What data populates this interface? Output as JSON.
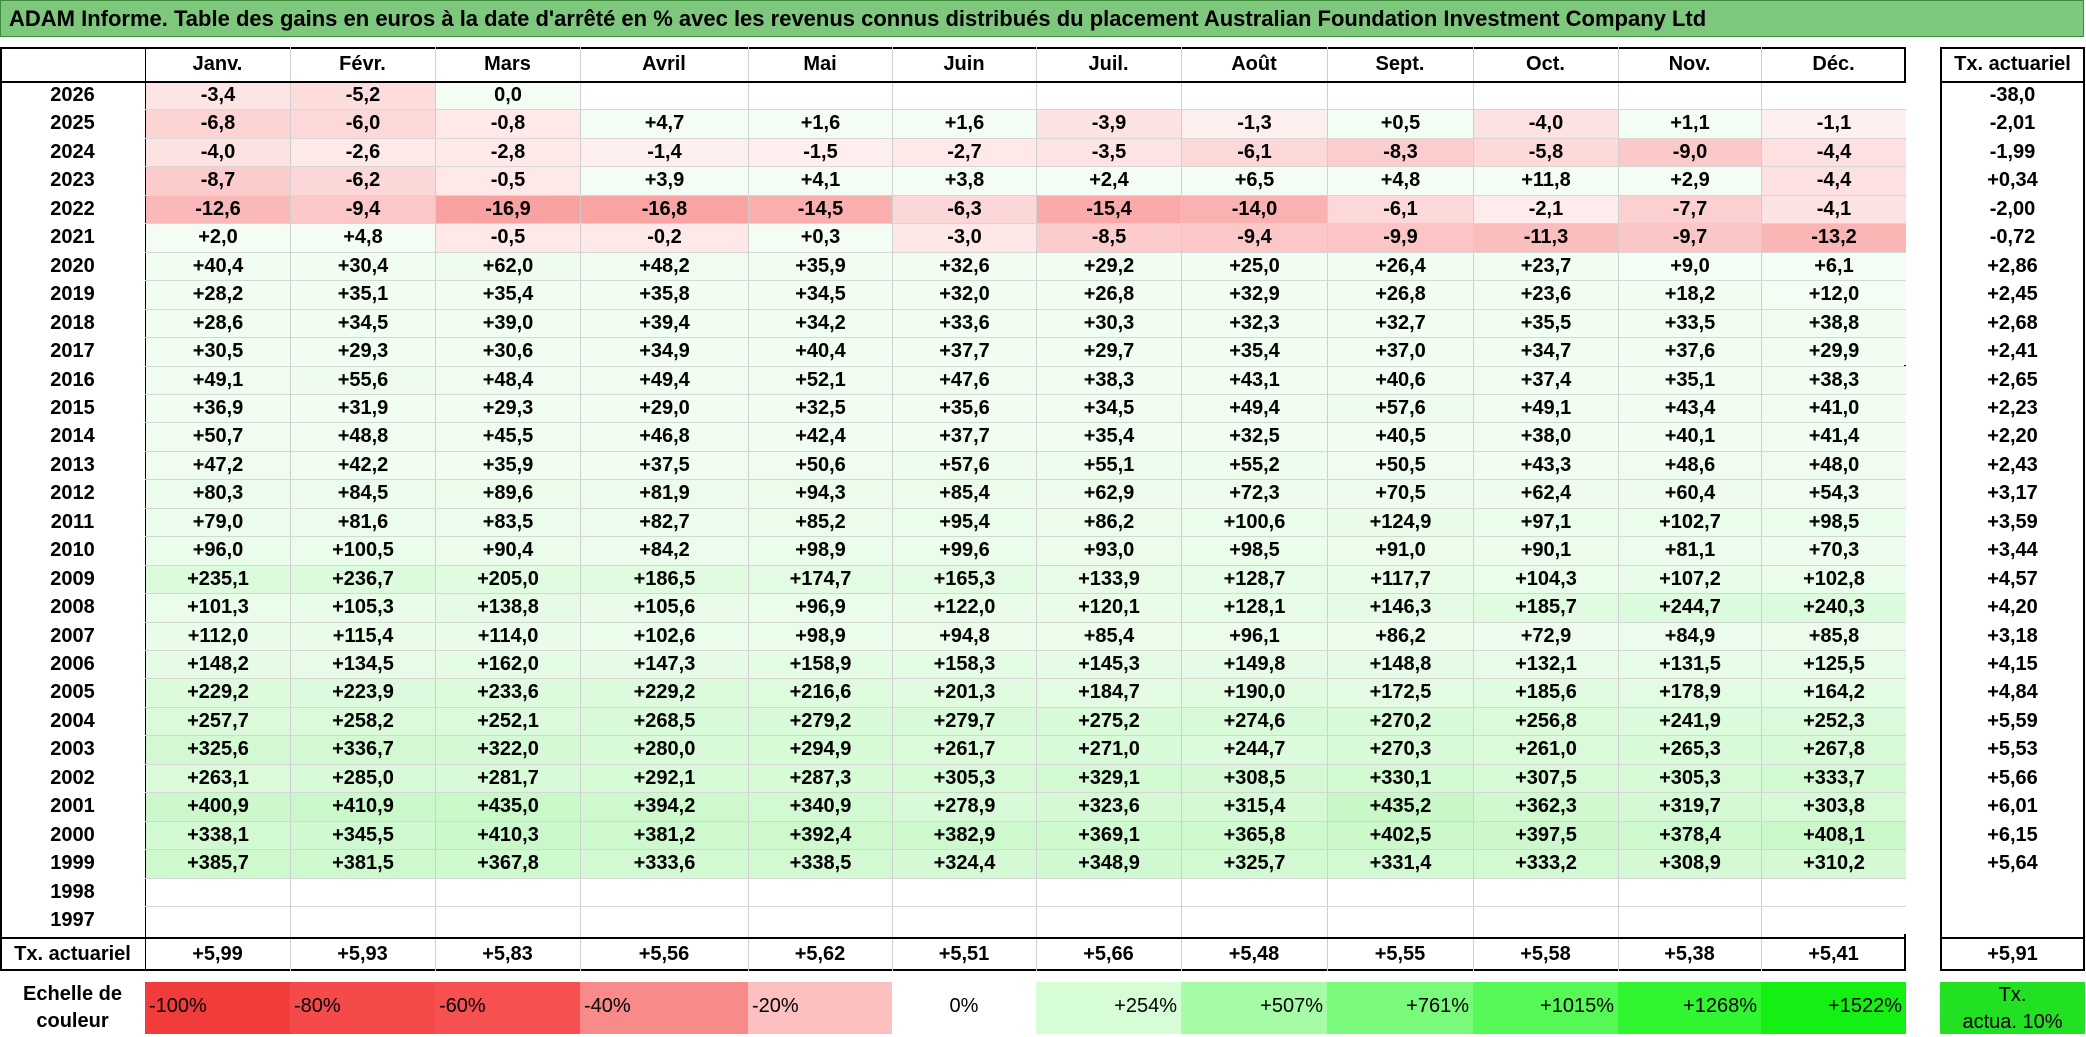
{
  "title": "ADAM Informe. Table des gains en euros à la date d'arrêté en % avec les revenus connus distribués du placement Australian Foundation Investment Company Ltd",
  "months": [
    "Janv.",
    "Févr.",
    "Mars",
    "Avril",
    "Mai",
    "Juin",
    "Juil.",
    "Août",
    "Sept.",
    "Oct.",
    "Nov.",
    "Déc."
  ],
  "rate_header": "Tx. actuariel",
  "rows": [
    {
      "year": "2026",
      "values": [
        "-3,4",
        "-5,2",
        "0,0",
        "",
        "",
        "",
        "",
        "",
        "",
        "",
        "",
        ""
      ],
      "rate": "-38,0"
    },
    {
      "year": "2025",
      "values": [
        "-6,8",
        "-6,0",
        "-0,8",
        "+4,7",
        "+1,6",
        "+1,6",
        "-3,9",
        "-1,3",
        "+0,5",
        "-4,0",
        "+1,1",
        "-1,1"
      ],
      "rate": "-2,01"
    },
    {
      "year": "2024",
      "values": [
        "-4,0",
        "-2,6",
        "-2,8",
        "-1,4",
        "-1,5",
        "-2,7",
        "-3,5",
        "-6,1",
        "-8,3",
        "-5,8",
        "-9,0",
        "-4,4"
      ],
      "rate": "-1,99"
    },
    {
      "year": "2023",
      "values": [
        "-8,7",
        "-6,2",
        "-0,5",
        "+3,9",
        "+4,1",
        "+3,8",
        "+2,4",
        "+6,5",
        "+4,8",
        "+11,8",
        "+2,9",
        "-4,4"
      ],
      "rate": "+0,34"
    },
    {
      "year": "2022",
      "values": [
        "-12,6",
        "-9,4",
        "-16,9",
        "-16,8",
        "-14,5",
        "-6,3",
        "-15,4",
        "-14,0",
        "-6,1",
        "-2,1",
        "-7,7",
        "-4,1"
      ],
      "rate": "-2,00"
    },
    {
      "year": "2021",
      "values": [
        "+2,0",
        "+4,8",
        "-0,5",
        "-0,2",
        "+0,3",
        "-3,0",
        "-8,5",
        "-9,4",
        "-9,9",
        "-11,3",
        "-9,7",
        "-13,2"
      ],
      "rate": "-0,72"
    },
    {
      "year": "2020",
      "values": [
        "+40,4",
        "+30,4",
        "+62,0",
        "+48,2",
        "+35,9",
        "+32,6",
        "+29,2",
        "+25,0",
        "+26,4",
        "+23,7",
        "+9,0",
        "+6,1"
      ],
      "rate": "+2,86"
    },
    {
      "year": "2019",
      "values": [
        "+28,2",
        "+35,1",
        "+35,4",
        "+35,8",
        "+34,5",
        "+32,0",
        "+26,8",
        "+32,9",
        "+26,8",
        "+23,6",
        "+18,2",
        "+12,0"
      ],
      "rate": "+2,45"
    },
    {
      "year": "2018",
      "values": [
        "+28,6",
        "+34,5",
        "+39,0",
        "+39,4",
        "+34,2",
        "+33,6",
        "+30,3",
        "+32,3",
        "+32,7",
        "+35,5",
        "+33,5",
        "+38,8"
      ],
      "rate": "+2,68"
    },
    {
      "year": "2017",
      "values": [
        "+30,5",
        "+29,3",
        "+30,6",
        "+34,9",
        "+40,4",
        "+37,7",
        "+29,7",
        "+35,4",
        "+37,0",
        "+34,7",
        "+37,6",
        "+29,9"
      ],
      "rate": "+2,41"
    },
    {
      "year": "2016",
      "values": [
        "+49,1",
        "+55,6",
        "+48,4",
        "+49,4",
        "+52,1",
        "+47,6",
        "+38,3",
        "+43,1",
        "+40,6",
        "+37,4",
        "+35,1",
        "+38,3"
      ],
      "rate": "+2,65"
    },
    {
      "year": "2015",
      "values": [
        "+36,9",
        "+31,9",
        "+29,3",
        "+29,0",
        "+32,5",
        "+35,6",
        "+34,5",
        "+49,4",
        "+57,6",
        "+49,1",
        "+43,4",
        "+41,0"
      ],
      "rate": "+2,23"
    },
    {
      "year": "2014",
      "values": [
        "+50,7",
        "+48,8",
        "+45,5",
        "+46,8",
        "+42,4",
        "+37,7",
        "+35,4",
        "+32,5",
        "+40,5",
        "+38,0",
        "+40,1",
        "+41,4"
      ],
      "rate": "+2,20"
    },
    {
      "year": "2013",
      "values": [
        "+47,2",
        "+42,2",
        "+35,9",
        "+37,5",
        "+50,6",
        "+57,6",
        "+55,1",
        "+55,2",
        "+50,5",
        "+43,3",
        "+48,6",
        "+48,0"
      ],
      "rate": "+2,43"
    },
    {
      "year": "2012",
      "values": [
        "+80,3",
        "+84,5",
        "+89,6",
        "+81,9",
        "+94,3",
        "+85,4",
        "+62,9",
        "+72,3",
        "+70,5",
        "+62,4",
        "+60,4",
        "+54,3"
      ],
      "rate": "+3,17"
    },
    {
      "year": "2011",
      "values": [
        "+79,0",
        "+81,6",
        "+83,5",
        "+82,7",
        "+85,2",
        "+95,4",
        "+86,2",
        "+100,6",
        "+124,9",
        "+97,1",
        "+102,7",
        "+98,5"
      ],
      "rate": "+3,59"
    },
    {
      "year": "2010",
      "values": [
        "+96,0",
        "+100,5",
        "+90,4",
        "+84,2",
        "+98,9",
        "+99,6",
        "+93,0",
        "+98,5",
        "+91,0",
        "+90,1",
        "+81,1",
        "+70,3"
      ],
      "rate": "+3,44"
    },
    {
      "year": "2009",
      "values": [
        "+235,1",
        "+236,7",
        "+205,0",
        "+186,5",
        "+174,7",
        "+165,3",
        "+133,9",
        "+128,7",
        "+117,7",
        "+104,3",
        "+107,2",
        "+102,8"
      ],
      "rate": "+4,57"
    },
    {
      "year": "2008",
      "values": [
        "+101,3",
        "+105,3",
        "+138,8",
        "+105,6",
        "+96,9",
        "+122,0",
        "+120,1",
        "+128,1",
        "+146,3",
        "+185,7",
        "+244,7",
        "+240,3"
      ],
      "rate": "+4,20"
    },
    {
      "year": "2007",
      "values": [
        "+112,0",
        "+115,4",
        "+114,0",
        "+102,6",
        "+98,9",
        "+94,8",
        "+85,4",
        "+96,1",
        "+86,2",
        "+72,9",
        "+84,9",
        "+85,8"
      ],
      "rate": "+3,18"
    },
    {
      "year": "2006",
      "values": [
        "+148,2",
        "+134,5",
        "+162,0",
        "+147,3",
        "+158,9",
        "+158,3",
        "+145,3",
        "+149,8",
        "+148,8",
        "+132,1",
        "+131,5",
        "+125,5"
      ],
      "rate": "+4,15"
    },
    {
      "year": "2005",
      "values": [
        "+229,2",
        "+223,9",
        "+233,6",
        "+229,2",
        "+216,6",
        "+201,3",
        "+184,7",
        "+190,0",
        "+172,5",
        "+185,6",
        "+178,9",
        "+164,2"
      ],
      "rate": "+4,84"
    },
    {
      "year": "2004",
      "values": [
        "+257,7",
        "+258,2",
        "+252,1",
        "+268,5",
        "+279,2",
        "+279,7",
        "+275,2",
        "+274,6",
        "+270,2",
        "+256,8",
        "+241,9",
        "+252,3"
      ],
      "rate": "+5,59"
    },
    {
      "year": "2003",
      "values": [
        "+325,6",
        "+336,7",
        "+322,0",
        "+280,0",
        "+294,9",
        "+261,7",
        "+271,0",
        "+244,7",
        "+270,3",
        "+261,0",
        "+265,3",
        "+267,8"
      ],
      "rate": "+5,53"
    },
    {
      "year": "2002",
      "values": [
        "+263,1",
        "+285,0",
        "+281,7",
        "+292,1",
        "+287,3",
        "+305,3",
        "+329,1",
        "+308,5",
        "+330,1",
        "+307,5",
        "+305,3",
        "+333,7"
      ],
      "rate": "+5,66"
    },
    {
      "year": "2001",
      "values": [
        "+400,9",
        "+410,9",
        "+435,0",
        "+394,2",
        "+340,9",
        "+278,9",
        "+323,6",
        "+315,4",
        "+435,2",
        "+362,3",
        "+319,7",
        "+303,8"
      ],
      "rate": "+6,01"
    },
    {
      "year": "2000",
      "values": [
        "+338,1",
        "+345,5",
        "+410,3",
        "+381,2",
        "+392,4",
        "+382,9",
        "+369,1",
        "+365,8",
        "+402,5",
        "+397,5",
        "+378,4",
        "+408,1"
      ],
      "rate": "+6,15"
    },
    {
      "year": "1999",
      "values": [
        "+385,7",
        "+381,5",
        "+367,8",
        "+333,6",
        "+338,5",
        "+324,4",
        "+348,9",
        "+325,7",
        "+331,4",
        "+333,2",
        "+308,9",
        "+310,2"
      ],
      "rate": "+5,64"
    },
    {
      "year": "1998",
      "values": [
        "",
        "",
        "",
        "",
        "",
        "",
        "",
        "",
        "",
        "",
        "",
        ""
      ],
      "rate": ""
    },
    {
      "year": "1997",
      "values": [
        "",
        "",
        "",
        "",
        "",
        "",
        "",
        "",
        "",
        "",
        "",
        ""
      ],
      "rate": ""
    }
  ],
  "footer": {
    "label": "Tx. actuariel",
    "values": [
      "+5,99",
      "+5,93",
      "+5,83",
      "+5,56",
      "+5,62",
      "+5,51",
      "+5,66",
      "+5,48",
      "+5,55",
      "+5,58",
      "+5,38",
      "+5,41"
    ],
    "rate": "+5,91"
  },
  "scale": {
    "label_line1": "Echelle de",
    "label_line2": "couleur",
    "items": [
      {
        "text": "-100%",
        "color": "#f23b3b",
        "align": "left"
      },
      {
        "text": "-80%",
        "color": "#f54a4a",
        "align": "left"
      },
      {
        "text": "-60%",
        "color": "#f75050",
        "align": "left"
      },
      {
        "text": "-40%",
        "color": "#f98a8a",
        "align": "left"
      },
      {
        "text": "-20%",
        "color": "#fcc0c0",
        "align": "left"
      },
      {
        "text": "0%",
        "color": "#ffffff",
        "align": "center"
      },
      {
        "text": "+254%",
        "color": "#d7fdd7",
        "align": "right"
      },
      {
        "text": "+507%",
        "color": "#a6fca6",
        "align": "right"
      },
      {
        "text": "+761%",
        "color": "#7afa7a",
        "align": "right"
      },
      {
        "text": "+1015%",
        "color": "#55f855",
        "align": "right"
      },
      {
        "text": "+1268%",
        "color": "#31f531",
        "align": "right"
      },
      {
        "text": "+1522%",
        "color": "#14f014",
        "align": "right"
      }
    ],
    "side_line1": "Tx.",
    "side_line2": "actua. 10%",
    "side_color": "#22e022"
  },
  "colors": {
    "title_bg": "#7ec87e",
    "neg_max": "#f9a2a2",
    "pos_max": "#c8f8c8"
  }
}
